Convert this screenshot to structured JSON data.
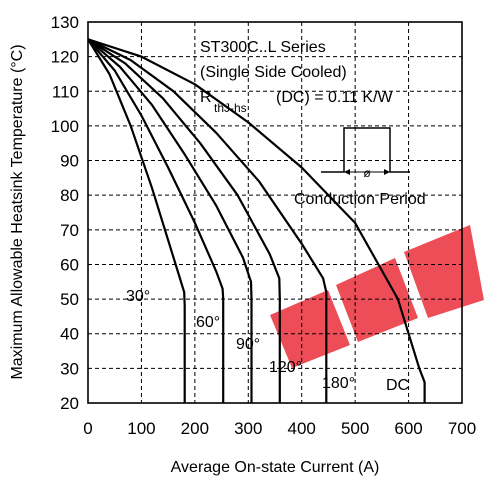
{
  "chart_data": {
    "type": "line",
    "xlabel": "Average On-state Current (A)",
    "ylabel": "Maximum Allowable Heatsink Temperature (°C)",
    "xlim": [
      0,
      700
    ],
    "ylim": [
      20,
      130
    ],
    "x_ticks": [
      "0",
      "100",
      "200",
      "300",
      "400",
      "500",
      "600",
      "700"
    ],
    "y_ticks": [
      "130",
      "120",
      "110",
      "100",
      "90",
      "80",
      "70",
      "60",
      "50",
      "40",
      "30",
      "20"
    ],
    "grid": true,
    "annotations": {
      "line1": "ST300C..L Series",
      "line2": "(Single Side Cooled)",
      "rth_main": "R",
      "rth_sub": "thJ-hs",
      "rth_value": "(DC) = 0.11 K/W",
      "conduction_period": "Conduction Period",
      "phi_symbol": "ø"
    },
    "series": [
      {
        "name": "30°",
        "x": [
          0,
          40,
          80,
          120,
          160,
          180,
          181,
          181
        ],
        "y": [
          125,
          115,
          100,
          82,
          62,
          52,
          48,
          20
        ]
      },
      {
        "name": "60°",
        "x": [
          0,
          50,
          100,
          150,
          200,
          240,
          252,
          253,
          253
        ],
        "y": [
          125,
          116,
          103,
          88,
          72,
          58,
          53,
          50,
          20
        ]
      },
      {
        "name": "90°",
        "x": [
          0,
          60,
          120,
          180,
          240,
          290,
          305,
          306,
          306
        ],
        "y": [
          125,
          117,
          106,
          92,
          77,
          62,
          55,
          50,
          20
        ]
      },
      {
        "name": "120°",
        "x": [
          0,
          70,
          140,
          210,
          280,
          340,
          358,
          359,
          359
        ],
        "y": [
          125,
          118,
          108,
          95,
          80,
          63,
          56,
          50,
          20
        ]
      },
      {
        "name": "180°",
        "x": [
          0,
          80,
          160,
          240,
          320,
          400,
          440,
          446,
          446
        ],
        "y": [
          125,
          119,
          110,
          98,
          84,
          66,
          56,
          52,
          20
        ]
      },
      {
        "name": "DC",
        "x": [
          0,
          100,
          200,
          300,
          400,
          500,
          580,
          620,
          630,
          630
        ],
        "y": [
          125,
          120,
          112,
          101,
          88,
          72,
          50,
          30,
          26,
          20
        ]
      }
    ]
  }
}
